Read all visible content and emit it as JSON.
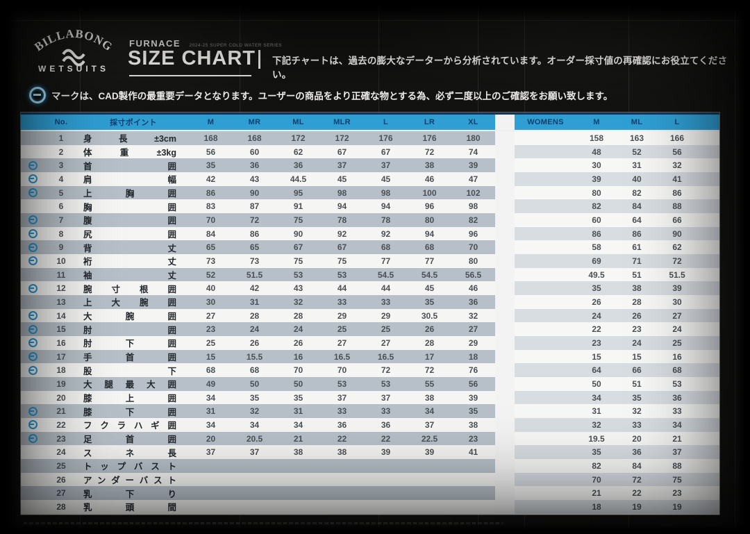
{
  "header": {
    "brand": {
      "name": "BILLABONG",
      "sub": "WETSUITS"
    },
    "product_line": "FURNACE",
    "series": "2024-25 SUPER COLD WATER SERIES",
    "title": "SIZE CHART",
    "description": "下記チャートは、過去の膨大なデーターから分析されています。オーダー採寸値の再確認にお役立てください。"
  },
  "cad_note": {
    "text": "マークは、CAD製作の最重要データとなります。ユーザーの商品をより正確な物とする為、必ず二度以上のご確認をお願い致します。"
  },
  "colors": {
    "header_blue": "#2f9fd4",
    "header_text_navy": "#10406e",
    "mens_stripe": "#b7c0c8",
    "womens_stripe": "#d8dde2",
    "cad_icon_blue": "#2597d2",
    "table_top_border": "#16375c"
  },
  "table": {
    "no_label": "No.",
    "point_label": "採寸ポイント",
    "mens_columns": [
      "M",
      "MR",
      "ML",
      "MLR",
      "L",
      "LR",
      "XL"
    ],
    "womens_label": "WOMENS",
    "womens_columns": [
      "M",
      "ML",
      "L"
    ],
    "rows": [
      {
        "no": 1,
        "point": "身長±3cm",
        "cad": false,
        "mens": [
          168,
          168,
          172,
          172,
          176,
          176,
          180
        ],
        "womens": [
          158,
          163,
          166
        ]
      },
      {
        "no": 2,
        "point": "体重±3kg",
        "cad": false,
        "mens": [
          56,
          60,
          62,
          67,
          67,
          72,
          74
        ],
        "womens": [
          48,
          52,
          56
        ]
      },
      {
        "no": 3,
        "point": "首囲",
        "cad": true,
        "mens": [
          35,
          36,
          36,
          37,
          37,
          38,
          39
        ],
        "womens": [
          30,
          31,
          32
        ]
      },
      {
        "no": 4,
        "point": "肩幅",
        "cad": true,
        "mens": [
          42,
          43,
          44.5,
          45,
          45,
          46,
          47
        ],
        "womens": [
          39,
          40,
          41
        ]
      },
      {
        "no": 5,
        "point": "上胸囲",
        "cad": true,
        "mens": [
          86,
          90,
          95,
          98,
          98,
          100,
          102
        ],
        "womens": [
          80,
          82,
          86
        ]
      },
      {
        "no": 6,
        "point": "胸囲",
        "cad": false,
        "mens": [
          83,
          87,
          91,
          94,
          94,
          96,
          98
        ],
        "womens": [
          82,
          84,
          88
        ]
      },
      {
        "no": 7,
        "point": "腹囲",
        "cad": true,
        "mens": [
          70,
          72,
          75,
          78,
          78,
          80,
          82
        ],
        "womens": [
          60,
          64,
          66
        ]
      },
      {
        "no": 8,
        "point": "尻囲",
        "cad": true,
        "mens": [
          84,
          86,
          90,
          92,
          92,
          94,
          96
        ],
        "womens": [
          86,
          86,
          90
        ]
      },
      {
        "no": 9,
        "point": "背丈",
        "cad": true,
        "mens": [
          65,
          65,
          67,
          67,
          68,
          68,
          70
        ],
        "womens": [
          58,
          61,
          62
        ]
      },
      {
        "no": 10,
        "point": "裄丈",
        "cad": true,
        "mens": [
          73,
          73,
          75,
          75,
          77,
          77,
          80
        ],
        "womens": [
          69,
          71,
          72
        ]
      },
      {
        "no": 11,
        "point": "袖丈",
        "cad": false,
        "mens": [
          52,
          51.5,
          53,
          53,
          54.5,
          54.5,
          56.5
        ],
        "womens": [
          49.5,
          51,
          51.5
        ]
      },
      {
        "no": 12,
        "point": "腕寸根囲",
        "cad": true,
        "mens": [
          40,
          42,
          43,
          44,
          44,
          45,
          46
        ],
        "womens": [
          35,
          38,
          39
        ]
      },
      {
        "no": 13,
        "point": "上大腕囲",
        "cad": false,
        "mens": [
          30,
          31,
          32,
          33,
          33,
          35,
          36
        ],
        "womens": [
          26,
          28,
          30
        ]
      },
      {
        "no": 14,
        "point": "大腕囲",
        "cad": true,
        "mens": [
          27,
          28,
          28,
          29,
          29,
          30.5,
          32
        ],
        "womens": [
          24,
          26,
          27
        ]
      },
      {
        "no": 15,
        "point": "肘囲",
        "cad": true,
        "mens": [
          23,
          24,
          24,
          25,
          25,
          26,
          27
        ],
        "womens": [
          22,
          23,
          24
        ]
      },
      {
        "no": 16,
        "point": "肘下囲",
        "cad": true,
        "mens": [
          25,
          26,
          26,
          27,
          27,
          28,
          29
        ],
        "womens": [
          23,
          24,
          25
        ]
      },
      {
        "no": 17,
        "point": "手首囲",
        "cad": true,
        "mens": [
          15,
          15.5,
          16,
          16.5,
          16.5,
          17,
          18
        ],
        "womens": [
          15,
          15,
          16
        ]
      },
      {
        "no": 18,
        "point": "股下",
        "cad": true,
        "mens": [
          68,
          68,
          70,
          70,
          72,
          72,
          76
        ],
        "womens": [
          64,
          66,
          68
        ]
      },
      {
        "no": 19,
        "point": "大腿最大囲",
        "cad": false,
        "mens": [
          49,
          50,
          50,
          53,
          53,
          55,
          56
        ],
        "womens": [
          50,
          51,
          53
        ]
      },
      {
        "no": 20,
        "point": "膝上囲",
        "cad": false,
        "mens": [
          34,
          35,
          35,
          37,
          37,
          38,
          39
        ],
        "womens": [
          34,
          35,
          36
        ]
      },
      {
        "no": 21,
        "point": "膝下囲",
        "cad": true,
        "mens": [
          31,
          32,
          31,
          33,
          33,
          34,
          35
        ],
        "womens": [
          31,
          32,
          33
        ]
      },
      {
        "no": 22,
        "point": "フクラハギ囲",
        "cad": true,
        "mens": [
          34,
          34,
          34,
          36,
          36,
          37,
          38
        ],
        "womens": [
          32,
          33,
          34
        ]
      },
      {
        "no": 23,
        "point": "足首囲",
        "cad": true,
        "mens": [
          20,
          20.5,
          21,
          22,
          22,
          22.5,
          23
        ],
        "womens": [
          19.5,
          20,
          21
        ]
      },
      {
        "no": 24,
        "point": "スネ長",
        "cad": false,
        "mens": [
          37,
          37,
          38,
          38,
          39,
          39,
          41
        ],
        "womens": [
          35,
          36,
          37
        ]
      },
      {
        "no": 25,
        "point": "トップバスト",
        "cad": false,
        "mens": [],
        "womens": [
          82,
          84,
          88
        ]
      },
      {
        "no": 26,
        "point": "アンダーバスト",
        "cad": false,
        "mens": [],
        "womens": [
          70,
          72,
          75
        ]
      },
      {
        "no": 27,
        "point": "乳下り",
        "cad": false,
        "mens": [],
        "womens": [
          21,
          22,
          23
        ]
      },
      {
        "no": 28,
        "point": "乳頭間",
        "cad": false,
        "mens": [],
        "womens": [
          18,
          19,
          19
        ]
      }
    ]
  }
}
